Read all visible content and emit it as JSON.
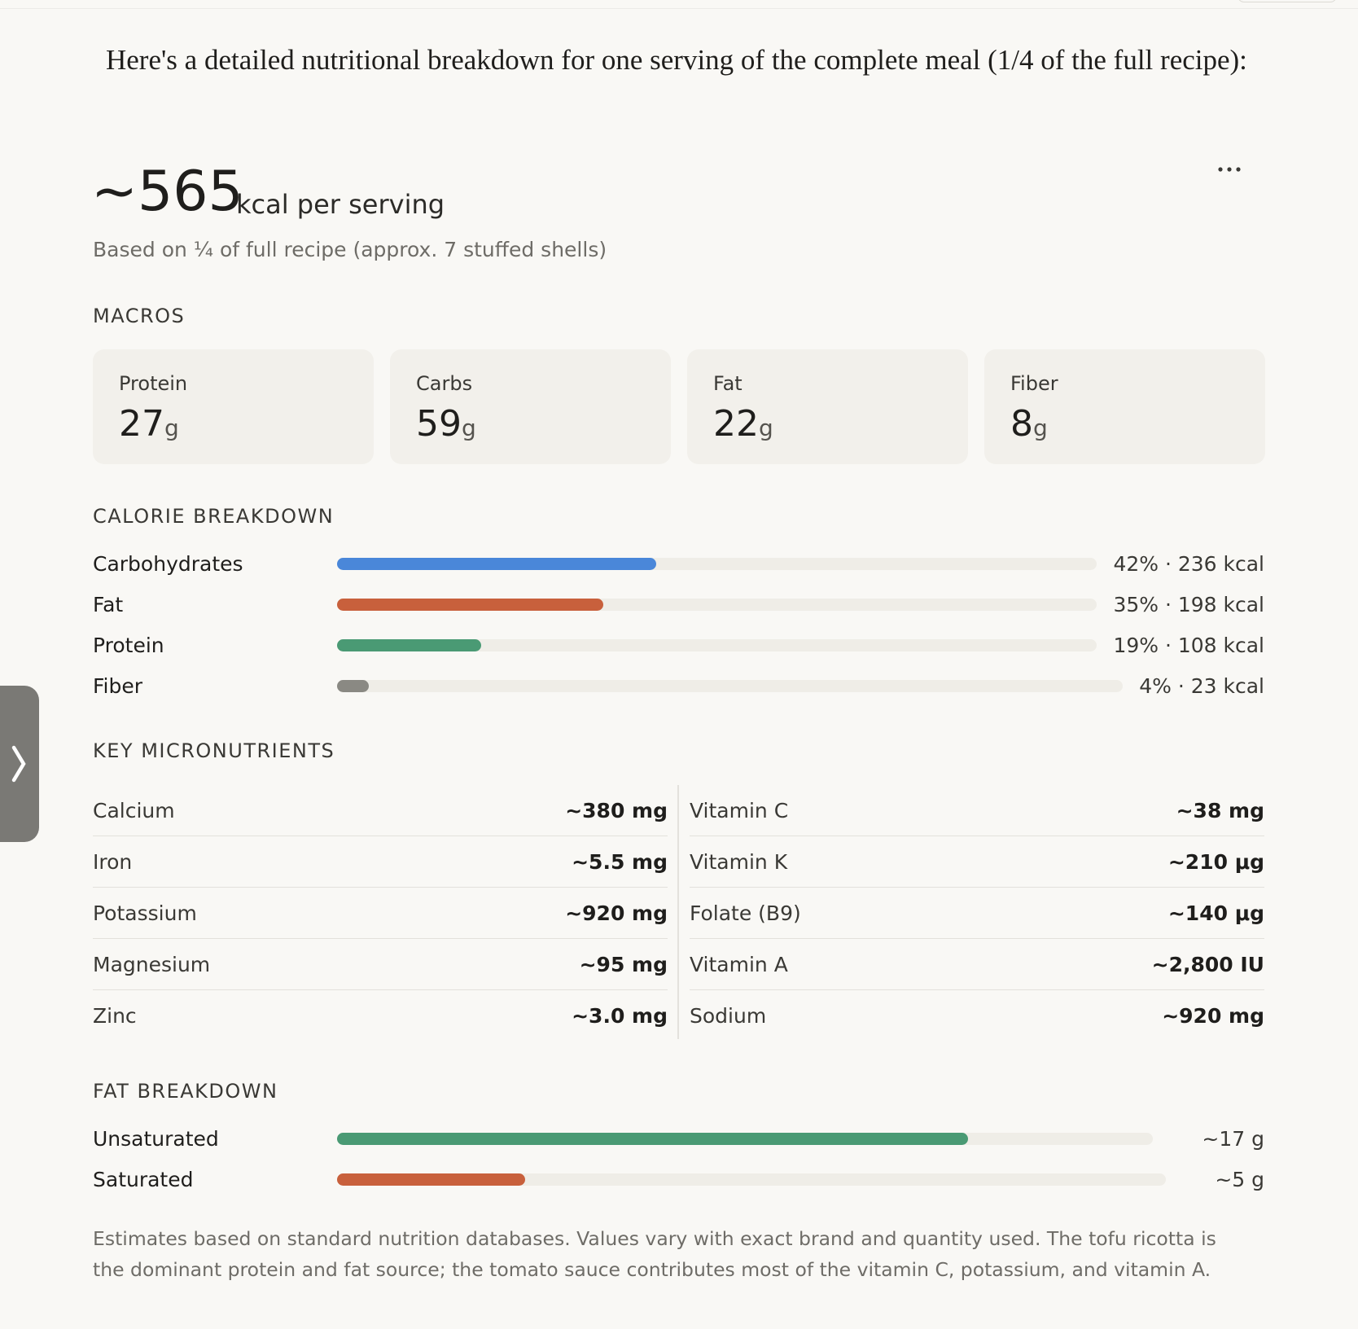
{
  "intro": "Here's a detailed nutritional breakdown for one serving of the complete meal (1/4 of the full recipe):",
  "summary": {
    "amount": "~565",
    "unit": "kcal per serving",
    "note": "Based on ¼ of full recipe (approx. 7 stuffed shells)"
  },
  "macros": {
    "title": "MACROS",
    "items": [
      {
        "name": "Protein",
        "value": 27,
        "unit": "g"
      },
      {
        "name": "Carbs",
        "value": 59,
        "unit": "g"
      },
      {
        "name": "Fat",
        "value": 22,
        "unit": "g"
      },
      {
        "name": "Fiber",
        "value": 8,
        "unit": "g"
      }
    ]
  },
  "calorie_breakdown": {
    "title": "CALORIE BREAKDOWN",
    "xlim": [
      0,
      100
    ],
    "rows": [
      {
        "name": "Carbohydrates",
        "color": "#4a87d9",
        "percent": 42,
        "label": "42% · 236 kcal"
      },
      {
        "name": "Fat",
        "color": "#c8603c",
        "percent": 35,
        "label": "35% · 198 kcal"
      },
      {
        "name": "Protein",
        "color": "#4a9a74",
        "percent": 19,
        "label": "19% · 108 kcal"
      },
      {
        "name": "Fiber",
        "color": "#8a8983",
        "percent": 4,
        "label": "4% · 23 kcal"
      }
    ]
  },
  "micronutrients": {
    "title": "KEY MICRONUTRIENTS",
    "columns": [
      [
        [
          "Calcium",
          "~380 mg"
        ],
        [
          "Iron",
          "~5.5 mg"
        ],
        [
          "Potassium",
          "~920 mg"
        ],
        [
          "Magnesium",
          "~95 mg"
        ],
        [
          "Zinc",
          "~3.0 mg"
        ]
      ],
      [
        [
          "Vitamin C",
          "~38 mg"
        ],
        [
          "Vitamin K",
          "~210 μg"
        ],
        [
          "Folate (B9)",
          "~140 μg"
        ],
        [
          "Vitamin A",
          "~2,800 IU"
        ],
        [
          "Sodium",
          "~920 mg"
        ]
      ]
    ]
  },
  "fat_breakdown": {
    "title": "FAT BREAKDOWN",
    "rows": [
      {
        "name": "Unsaturated",
        "color": "#4a9a74",
        "value": 17,
        "label": "~17 g"
      },
      {
        "name": "Saturated",
        "color": "#c8603c",
        "value": 5,
        "label": "~5 g"
      }
    ]
  },
  "footnote": "Estimates based on standard nutrition databases. Values vary with exact brand and quantity used. The tofu ricotta is the dominant protein and fat source; the tomato sauce contributes most of the vitamin C, potassium, and vitamin A."
}
